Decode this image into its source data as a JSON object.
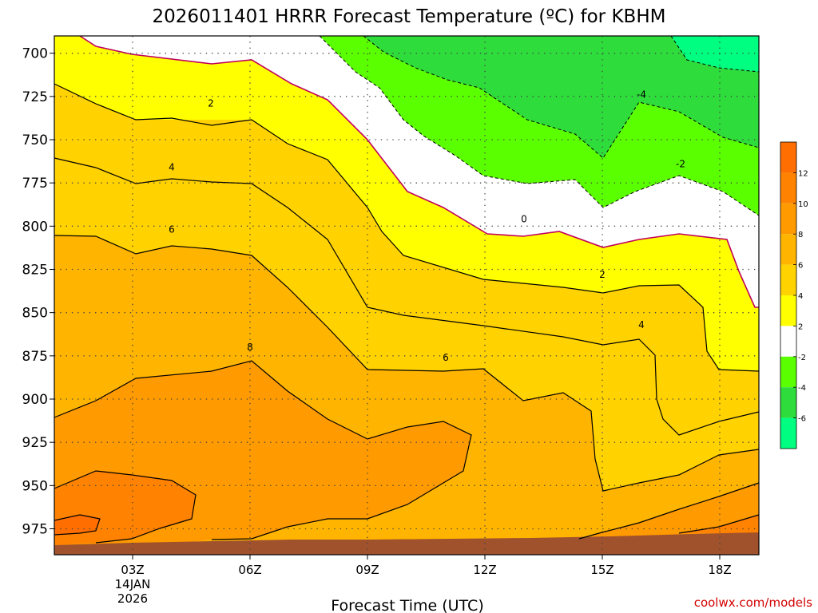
{
  "chart_data": {
    "type": "contour",
    "title": "2026011401 HRRR Forecast Temperature (ºC) for KBHM",
    "xlabel": "Forecast Time (UTC)",
    "ylabel": "",
    "credit": "coolwx.com/models",
    "x_range_hours": [
      1,
      19
    ],
    "y_range_hpa": [
      990,
      690
    ],
    "y_ticks": [
      700,
      725,
      750,
      775,
      800,
      825,
      850,
      875,
      900,
      925,
      950,
      975
    ],
    "x_ticks": [
      {
        "hour": 3,
        "label": "03Z",
        "sub1": "14JAN",
        "sub2": "2026"
      },
      {
        "hour": 6,
        "label": "06Z",
        "sub1": "",
        "sub2": ""
      },
      {
        "hour": 9,
        "label": "09Z",
        "sub1": "",
        "sub2": ""
      },
      {
        "hour": 12,
        "label": "12Z",
        "sub1": "",
        "sub2": ""
      },
      {
        "hour": 15,
        "label": "15Z",
        "sub1": "",
        "sub2": ""
      },
      {
        "hour": 18,
        "label": "18Z",
        "sub1": "",
        "sub2": ""
      }
    ],
    "grid": true,
    "colorbar": {
      "placement": "right",
      "bands": [
        {
          "from": 12,
          "to": 14,
          "color": "#ff6e00"
        },
        {
          "from": 10,
          "to": 12,
          "color": "#ff8200"
        },
        {
          "from": 8,
          "to": 10,
          "color": "#ff9a00"
        },
        {
          "from": 6,
          "to": 8,
          "color": "#ffb400"
        },
        {
          "from": 4,
          "to": 6,
          "color": "#ffd200"
        },
        {
          "from": 2,
          "to": 4,
          "color": "#ffff00"
        },
        {
          "from": -2,
          "to": 2,
          "color": "#ffffff"
        },
        {
          "from": -4,
          "to": -2,
          "color": "#5aff00"
        },
        {
          "from": -6,
          "to": -4,
          "color": "#2edc3c"
        },
        {
          "from": -8,
          "to": -6,
          "color": "#00ff80"
        }
      ],
      "labels": [
        "12",
        "10",
        "8",
        "6",
        "4",
        "2",
        "-2",
        "-4",
        "-6"
      ]
    },
    "contour_labels": [
      {
        "text": "2",
        "hour": 5.0,
        "p": 729
      },
      {
        "text": "4",
        "hour": 4.0,
        "p": 766
      },
      {
        "text": "6",
        "hour": 4.0,
        "p": 802
      },
      {
        "text": "8",
        "hour": 6.0,
        "p": 870
      },
      {
        "text": "0",
        "hour": 13.0,
        "p": 796
      },
      {
        "text": "2",
        "hour": 15.0,
        "p": 828
      },
      {
        "text": "4",
        "hour": 16.0,
        "p": 857
      },
      {
        "text": "6",
        "hour": 11.0,
        "p": 876
      },
      {
        "text": "-4",
        "hour": 16.0,
        "p": 724
      },
      {
        "text": "-2",
        "hour": 17.0,
        "p": 764
      }
    ]
  }
}
